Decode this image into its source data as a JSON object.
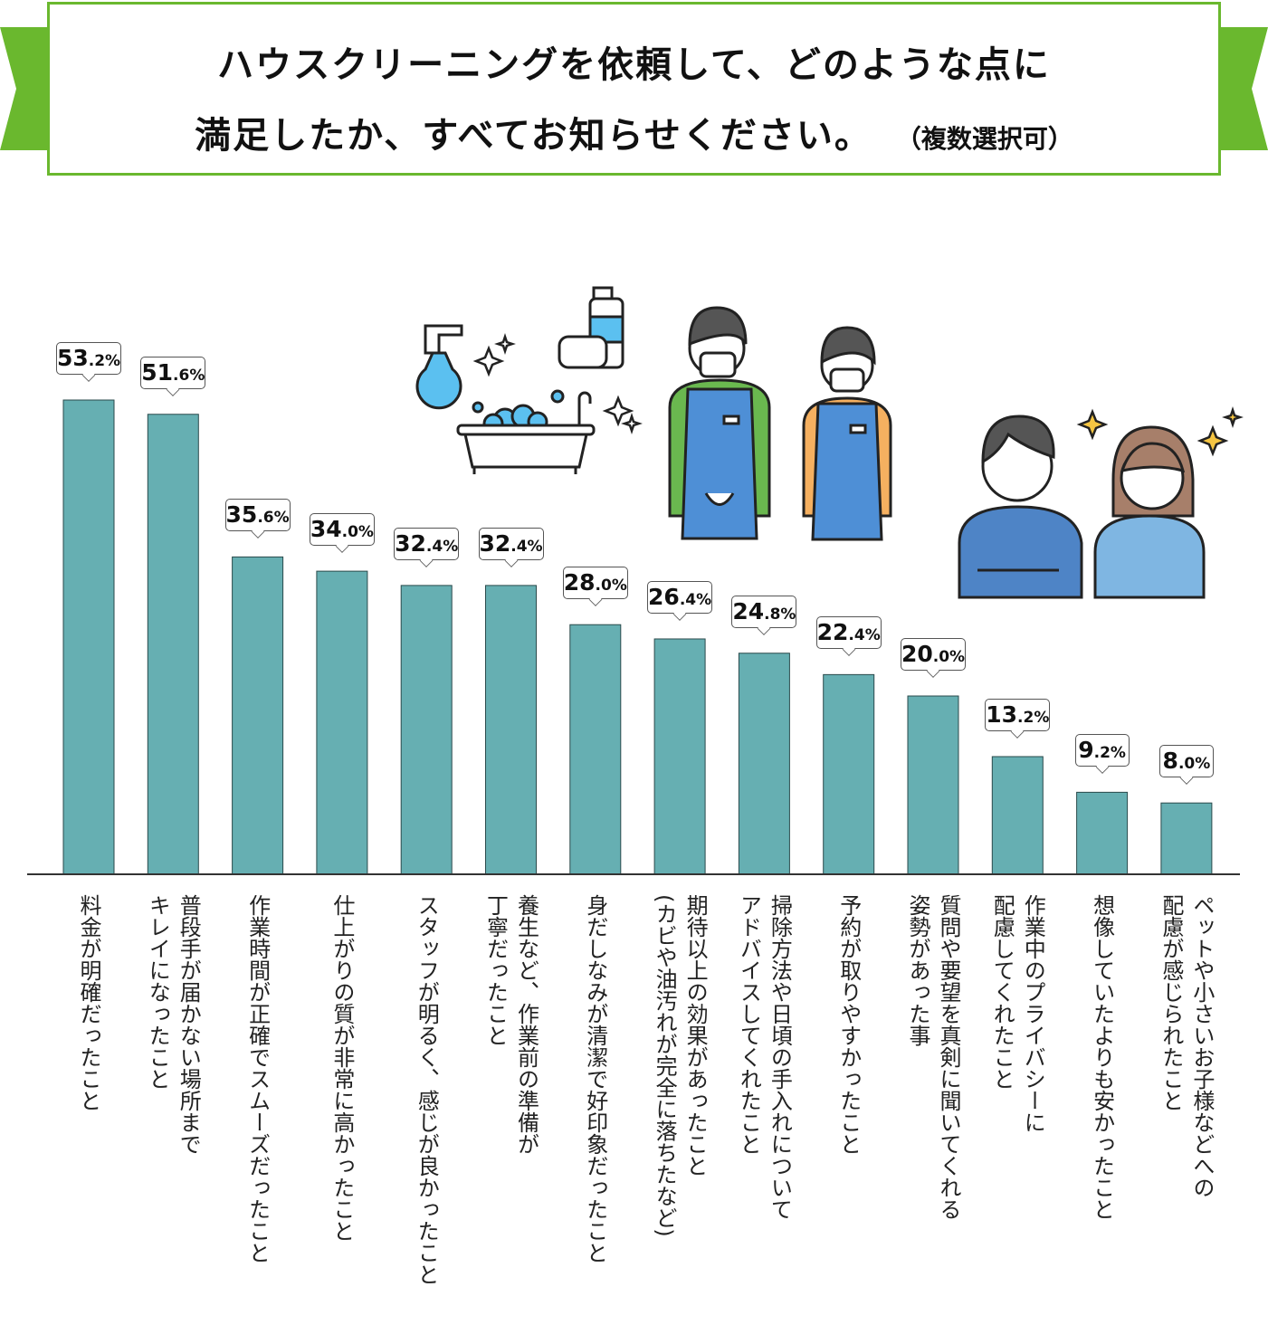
{
  "chart_data": {
    "type": "bar",
    "title": "ハウスクリーニングを依頼して、どのような点に満足したか、すべてお知らせください。",
    "title_line1": "ハウスクリーニングを依頼して、どのような点に",
    "title_line2": "満足したか、すべてお知らせください。",
    "subtitle": "（複数選択可）",
    "unit": "%",
    "ylim": [
      0,
      55
    ],
    "grid": false,
    "bar_color": "#66afb2",
    "categories": [
      [
        "料金が明確だったこと"
      ],
      [
        "普段手が届かない場所まで",
        "キレイになったこと"
      ],
      [
        "作業時間が正確でスムーズだったこと"
      ],
      [
        "仕上がりの質が非常に高かったこと"
      ],
      [
        "スタッフが明るく、感じが良かったこと"
      ],
      [
        "養生など、作業前の準備が",
        "丁寧だったこと"
      ],
      [
        "身だしなみが清潔で好印象だったこと"
      ],
      [
        "期待以上の効果があったこと",
        "(カビや油汚れが完全に落ちたなど)"
      ],
      [
        "掃除方法や日頃の手入れについて",
        "アドバイスしてくれたこと"
      ],
      [
        "予約が取りやすかったこと"
      ],
      [
        "質問や要望を真剣に聞いてくれる",
        "姿勢があった事"
      ],
      [
        "作業中のプライバシーに",
        "配慮してくれたこと"
      ],
      [
        "想像していたよりも安かったこと"
      ],
      [
        "ペットや小さいお子様などへの",
        "配慮が感じられたこと"
      ]
    ],
    "values": [
      53.2,
      51.6,
      35.6,
      34.0,
      32.4,
      32.4,
      28.0,
      26.4,
      24.8,
      22.4,
      20.0,
      13.2,
      9.2,
      8.0
    ]
  },
  "illustrations": [
    "spray-bottle-icon",
    "sponge-bottle-icon",
    "bathtub-icon",
    "sparkle-icon",
    "staff-male-icon",
    "staff-female-icon",
    "customer-male-icon",
    "customer-female-icon"
  ]
}
